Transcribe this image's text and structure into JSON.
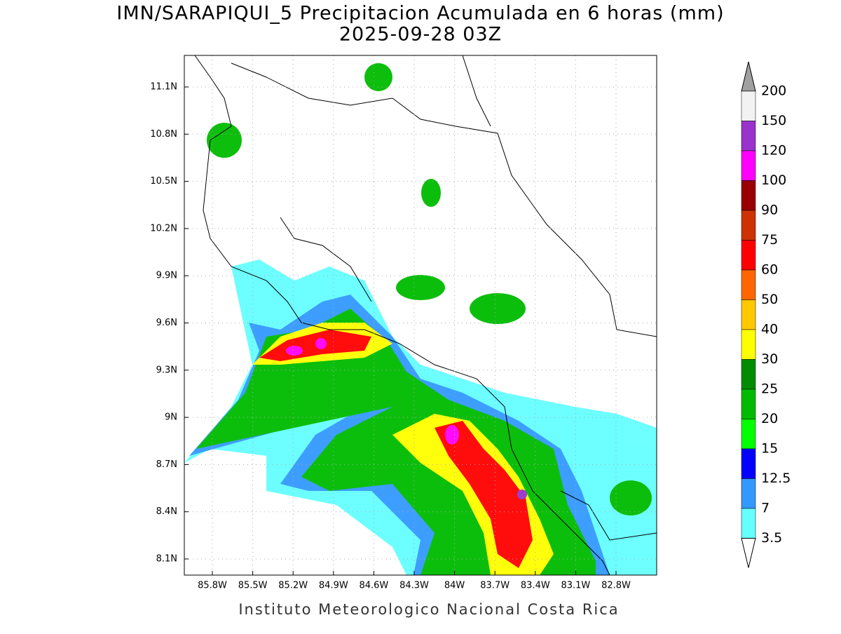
{
  "title": "IMN/SARAPIQUI_5 Precipitacion Acumulada en 6 horas (mm)",
  "subtitle": "2025-09-28 03Z",
  "map": {
    "lon_ticks": [
      "85.8W",
      "85.5W",
      "85.2W",
      "84.9W",
      "84.6W",
      "84.3W",
      "84W",
      "83.7W",
      "83.4W",
      "83.1W",
      "82.8W"
    ],
    "lat_ticks": [
      "11.1N",
      "10.8N",
      "10.5N",
      "10.2N",
      "9.9N",
      "9.6N",
      "9.3N",
      "9N",
      "8.7N",
      "8.4N",
      "8.1N"
    ]
  },
  "colorbar": {
    "levels": [
      200,
      150,
      120,
      100,
      90,
      75,
      60,
      50,
      40,
      30,
      25,
      20,
      15,
      12.5,
      7,
      3.5
    ],
    "colors": [
      "#f2f2f2",
      "#9933cc",
      "#ff00ff",
      "#990000",
      "#cc3300",
      "#ff0000",
      "#ff6600",
      "#ffc800",
      "#ffff00",
      "#008c00",
      "#00bb00",
      "#00ff00",
      "#0000ff",
      "#3399ff",
      "#66ffff"
    ],
    "above_color": "#a0a0a0",
    "below_color": "#ffffff"
  },
  "footer": "Instituto Meteorologico Nacional Costa Rica"
}
